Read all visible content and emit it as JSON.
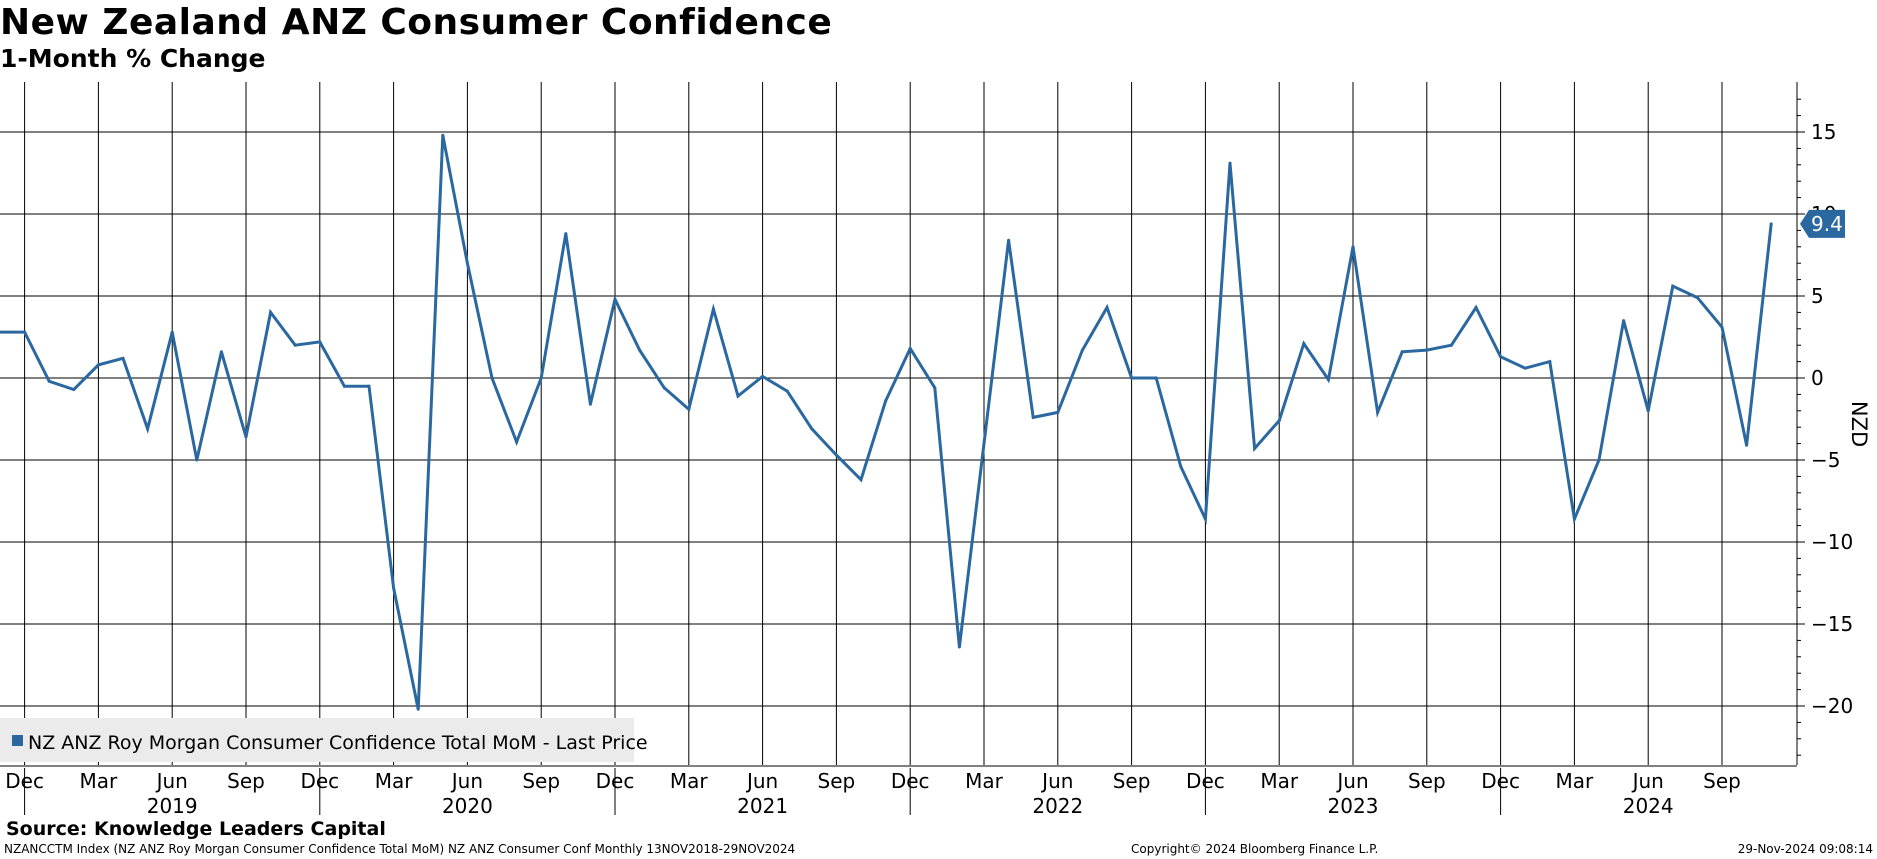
{
  "chart_data": {
    "type": "line",
    "title": "New Zealand ANZ Consumer Confidence",
    "subtitle": "1-Month % Change",
    "ylabel": "NZD",
    "ylim": [
      -24,
      18
    ],
    "yticks": [
      15,
      10,
      5,
      0,
      -5,
      -10,
      -15,
      -20
    ],
    "last_value_label": "9.4",
    "line_color": "#2b68a0",
    "x_month_ticks": [
      "Dec",
      "Mar",
      "Jun",
      "Sep",
      "Dec",
      "Mar",
      "Jun",
      "Sep",
      "Dec",
      "Mar",
      "Jun",
      "Sep",
      "Dec",
      "Mar",
      "Jun",
      "Sep",
      "Dec",
      "Mar",
      "Jun",
      "Sep",
      "Dec",
      "Mar",
      "Jun",
      "Sep"
    ],
    "x_year_labels": [
      "2019",
      "2020",
      "2021",
      "2022",
      "2023",
      "2024"
    ],
    "legend": [
      "NZ ANZ Roy Morgan Consumer Confidence Total MoM - Last Price"
    ],
    "series": [
      {
        "name": "NZ ANZ Roy Morgan Consumer Confidence Total MoM - Last Price",
        "start": "2018-11",
        "values": [
          2.8,
          2.8,
          -0.2,
          -0.7,
          0.8,
          1.2,
          -3.1,
          2.8,
          -5.0,
          1.6,
          -3.6,
          4.0,
          2.0,
          2.2,
          -0.5,
          -0.5,
          -12.8,
          -20.2,
          14.8,
          7.0,
          0.0,
          -3.9,
          0.0,
          8.8,
          -1.6,
          4.8,
          1.7,
          -0.6,
          -1.9,
          4.2,
          -1.1,
          0.1,
          -0.8,
          -3.1,
          -4.7,
          -6.2,
          -1.4,
          1.8,
          -0.6,
          -16.4,
          -4.0,
          8.4,
          -2.4,
          -2.1,
          1.7,
          4.3,
          0.0,
          0.0,
          -5.4,
          -8.6,
          13.1,
          -4.3,
          -2.6,
          2.1,
          -0.1,
          8.0,
          -2.1,
          1.6,
          1.7,
          2.0,
          4.3,
          1.3,
          0.6,
          1.0,
          -8.6,
          -5.0,
          3.5,
          -2.0,
          5.6,
          4.9,
          3.1,
          -4.1,
          9.4
        ]
      }
    ]
  },
  "footer": {
    "source": "Source: Knowledge Leaders Capital",
    "ticker_info": "NZANCCTM Index (NZ ANZ Roy Morgan Consumer Confidence Total MoM) NZ ANZ Consumer Conf  Monthly 13NOV2018-29NOV2024",
    "copyright": "Copyright© 2024 Bloomberg Finance L.P.",
    "timestamp": "29-Nov-2024 09:08:14"
  }
}
